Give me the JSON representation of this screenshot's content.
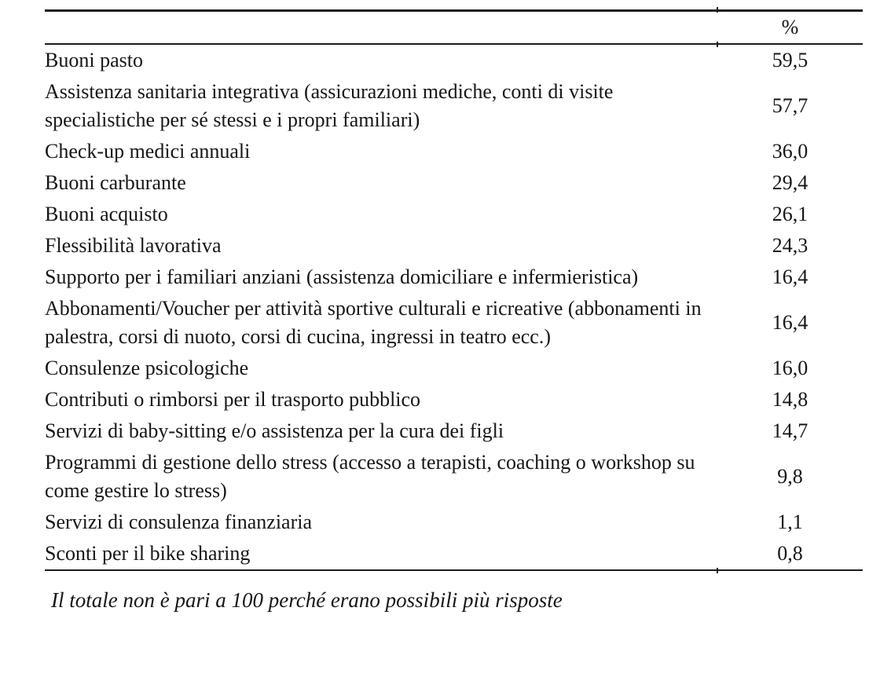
{
  "table": {
    "header": {
      "label": "",
      "value_label": "%"
    },
    "rows": [
      {
        "label": "Buoni pasto",
        "value": "59,5"
      },
      {
        "label": "Assistenza sanitaria integrativa (assicurazioni mediche, conti di visite specialistiche per sé stessi e i propri familiari)",
        "value": "57,7"
      },
      {
        "label": "Check-up medici annuali",
        "value": "36,0"
      },
      {
        "label": "Buoni carburante",
        "value": "29,4"
      },
      {
        "label": "Buoni acquisto",
        "value": "26,1"
      },
      {
        "label": "Flessibilità lavorativa",
        "value": "24,3"
      },
      {
        "label": "Supporto per i familiari anziani (assistenza domiciliare e infermieristica)",
        "value": "16,4"
      },
      {
        "label": "Abbonamenti/Voucher per attività sportive culturali e ricreative (abbonamenti in palestra, corsi di nuoto, corsi di cucina, ingressi in teatro ecc.)",
        "value": "16,4"
      },
      {
        "label": "Consulenze psicologiche",
        "value": "16,0"
      },
      {
        "label": "Contributi o rimborsi per il trasporto pubblico",
        "value": "14,8"
      },
      {
        "label": "Servizi di baby-sitting e/o assistenza per la cura dei figli",
        "value": "14,7"
      },
      {
        "label": "Programmi di gestione dello stress (accesso a terapisti, coaching o workshop su come gestire lo stress)",
        "value": "9,8"
      },
      {
        "label": "Servizi di consulenza finanziaria",
        "value": "1,1"
      },
      {
        "label": "Sconti per il bike sharing",
        "value": "0,8"
      }
    ],
    "footnote": "Il totale non è pari a 100 perché erano possibili più risposte"
  },
  "chart_data": {
    "type": "table",
    "columns": [
      "",
      "%"
    ],
    "categories": [
      "Buoni pasto",
      "Assistenza sanitaria integrativa (assicurazioni mediche, conti di visite specialistiche per sé stessi e i propri familiari)",
      "Check-up medici annuali",
      "Buoni carburante",
      "Buoni acquisto",
      "Flessibilità lavorativa",
      "Supporto per i familiari anziani (assistenza domiciliare e infermieristica)",
      "Abbonamenti/Voucher per attività sportive culturali e ricreative (abbonamenti in palestra, corsi di nuoto, corsi di cucina, ingressi in teatro ecc.)",
      "Consulenze psicologiche",
      "Contributi o rimborsi per il trasporto pubblico",
      "Servizi di baby-sitting e/o assistenza per la cura dei figli",
      "Programmi di gestione dello stress (accesso a terapisti, coaching o workshop su come gestire lo stress)",
      "Servizi di consulenza finanziaria",
      "Sconti per il bike sharing"
    ],
    "values": [
      59.5,
      57.7,
      36.0,
      29.4,
      26.1,
      24.3,
      16.4,
      16.4,
      16.0,
      14.8,
      14.7,
      9.8,
      1.1,
      0.8
    ],
    "note": "Il totale non è pari a 100 perché erano possibili più risposte"
  }
}
